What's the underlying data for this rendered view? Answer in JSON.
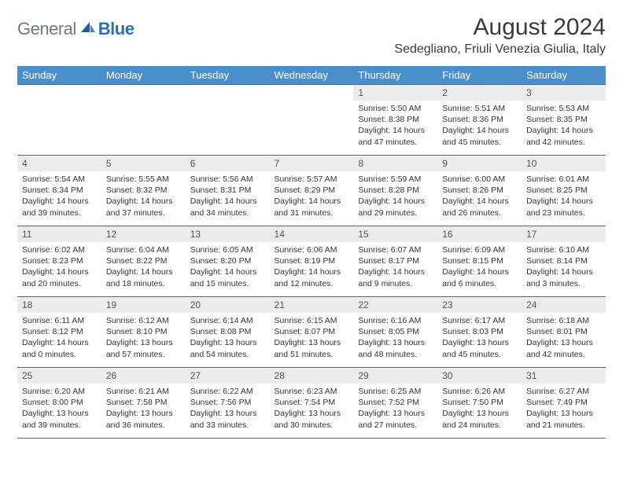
{
  "brand": {
    "general": "General",
    "blue": "Blue"
  },
  "title": "August 2024",
  "location": "Sedegliano, Friuli Venezia Giulia, Italy",
  "colors": {
    "header_bg": "#4a8fc9",
    "header_text": "#ffffff",
    "daynum_bg": "#ececec",
    "border": "#4a6a8a",
    "logo_gray": "#6f7a7f",
    "logo_blue": "#2f6fb0"
  },
  "typography": {
    "title_fontsize": 30,
    "location_fontsize": 16,
    "weekday_fontsize": 13,
    "daynum_fontsize": 12,
    "body_fontsize": 10.5
  },
  "weekdays": [
    "Sunday",
    "Monday",
    "Tuesday",
    "Wednesday",
    "Thursday",
    "Friday",
    "Saturday"
  ],
  "weeks": [
    [
      {
        "n": "",
        "sr": "",
        "ss": "",
        "dl": ""
      },
      {
        "n": "",
        "sr": "",
        "ss": "",
        "dl": ""
      },
      {
        "n": "",
        "sr": "",
        "ss": "",
        "dl": ""
      },
      {
        "n": "",
        "sr": "",
        "ss": "",
        "dl": ""
      },
      {
        "n": "1",
        "sr": "5:50 AM",
        "ss": "8:38 PM",
        "dl": "14 hours and 47 minutes."
      },
      {
        "n": "2",
        "sr": "5:51 AM",
        "ss": "8:36 PM",
        "dl": "14 hours and 45 minutes."
      },
      {
        "n": "3",
        "sr": "5:53 AM",
        "ss": "8:35 PM",
        "dl": "14 hours and 42 minutes."
      }
    ],
    [
      {
        "n": "4",
        "sr": "5:54 AM",
        "ss": "8:34 PM",
        "dl": "14 hours and 39 minutes."
      },
      {
        "n": "5",
        "sr": "5:55 AM",
        "ss": "8:32 PM",
        "dl": "14 hours and 37 minutes."
      },
      {
        "n": "6",
        "sr": "5:56 AM",
        "ss": "8:31 PM",
        "dl": "14 hours and 34 minutes."
      },
      {
        "n": "7",
        "sr": "5:57 AM",
        "ss": "8:29 PM",
        "dl": "14 hours and 31 minutes."
      },
      {
        "n": "8",
        "sr": "5:59 AM",
        "ss": "8:28 PM",
        "dl": "14 hours and 29 minutes."
      },
      {
        "n": "9",
        "sr": "6:00 AM",
        "ss": "8:26 PM",
        "dl": "14 hours and 26 minutes."
      },
      {
        "n": "10",
        "sr": "6:01 AM",
        "ss": "8:25 PM",
        "dl": "14 hours and 23 minutes."
      }
    ],
    [
      {
        "n": "11",
        "sr": "6:02 AM",
        "ss": "8:23 PM",
        "dl": "14 hours and 20 minutes."
      },
      {
        "n": "12",
        "sr": "6:04 AM",
        "ss": "8:22 PM",
        "dl": "14 hours and 18 minutes."
      },
      {
        "n": "13",
        "sr": "6:05 AM",
        "ss": "8:20 PM",
        "dl": "14 hours and 15 minutes."
      },
      {
        "n": "14",
        "sr": "6:06 AM",
        "ss": "8:19 PM",
        "dl": "14 hours and 12 minutes."
      },
      {
        "n": "15",
        "sr": "6:07 AM",
        "ss": "8:17 PM",
        "dl": "14 hours and 9 minutes."
      },
      {
        "n": "16",
        "sr": "6:09 AM",
        "ss": "8:15 PM",
        "dl": "14 hours and 6 minutes."
      },
      {
        "n": "17",
        "sr": "6:10 AM",
        "ss": "8:14 PM",
        "dl": "14 hours and 3 minutes."
      }
    ],
    [
      {
        "n": "18",
        "sr": "6:11 AM",
        "ss": "8:12 PM",
        "dl": "14 hours and 0 minutes."
      },
      {
        "n": "19",
        "sr": "6:12 AM",
        "ss": "8:10 PM",
        "dl": "13 hours and 57 minutes."
      },
      {
        "n": "20",
        "sr": "6:14 AM",
        "ss": "8:08 PM",
        "dl": "13 hours and 54 minutes."
      },
      {
        "n": "21",
        "sr": "6:15 AM",
        "ss": "8:07 PM",
        "dl": "13 hours and 51 minutes."
      },
      {
        "n": "22",
        "sr": "6:16 AM",
        "ss": "8:05 PM",
        "dl": "13 hours and 48 minutes."
      },
      {
        "n": "23",
        "sr": "6:17 AM",
        "ss": "8:03 PM",
        "dl": "13 hours and 45 minutes."
      },
      {
        "n": "24",
        "sr": "6:18 AM",
        "ss": "8:01 PM",
        "dl": "13 hours and 42 minutes."
      }
    ],
    [
      {
        "n": "25",
        "sr": "6:20 AM",
        "ss": "8:00 PM",
        "dl": "13 hours and 39 minutes."
      },
      {
        "n": "26",
        "sr": "6:21 AM",
        "ss": "7:58 PM",
        "dl": "13 hours and 36 minutes."
      },
      {
        "n": "27",
        "sr": "6:22 AM",
        "ss": "7:56 PM",
        "dl": "13 hours and 33 minutes."
      },
      {
        "n": "28",
        "sr": "6:23 AM",
        "ss": "7:54 PM",
        "dl": "13 hours and 30 minutes."
      },
      {
        "n": "29",
        "sr": "6:25 AM",
        "ss": "7:52 PM",
        "dl": "13 hours and 27 minutes."
      },
      {
        "n": "30",
        "sr": "6:26 AM",
        "ss": "7:50 PM",
        "dl": "13 hours and 24 minutes."
      },
      {
        "n": "31",
        "sr": "6:27 AM",
        "ss": "7:49 PM",
        "dl": "13 hours and 21 minutes."
      }
    ]
  ],
  "labels": {
    "sunrise": "Sunrise: ",
    "sunset": "Sunset: ",
    "daylight": "Daylight: "
  }
}
